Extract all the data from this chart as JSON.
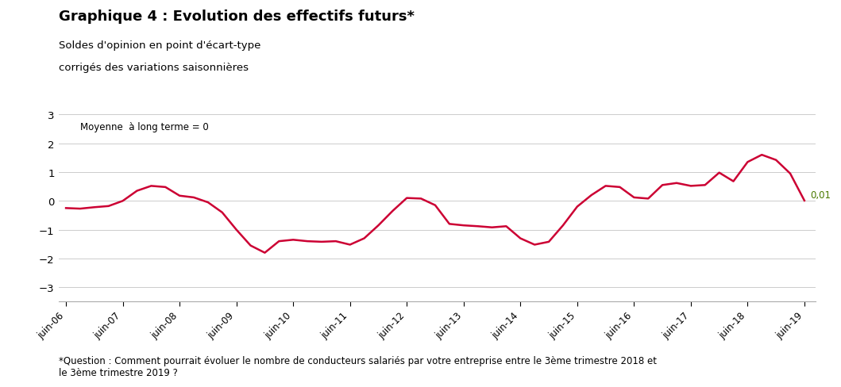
{
  "title": "Graphique 4 : Evolution des effectifs futurs*",
  "subtitle1": "Soldes d'opinion en point d'écart-type",
  "subtitle2": "corrigés des variations saisonnières",
  "annotation": "Moyenne  à long terme = 0",
  "footnote": "*Question : Comment pourrait évoluer le nombre de conducteurs salariés par votre entreprise entre le 3ème trimestre 2018 et\nle 3ème trimestre 2019 ?",
  "last_label": "0,01",
  "line_color": "#cc0033",
  "background_color": "#ffffff",
  "ylim": [
    -3.5,
    3.5
  ],
  "yticks": [
    -3,
    -2,
    -1,
    0,
    1,
    2,
    3
  ],
  "x_labels": [
    "juin-06",
    "juin-07",
    "juin-08",
    "juin-09",
    "juin-10",
    "juin-11",
    "juin-12",
    "juin-13",
    "juin-14",
    "juin-15",
    "juin-16",
    "juin-17",
    "juin-18",
    "juin-19"
  ],
  "x_tick_positions": [
    0,
    4,
    8,
    12,
    16,
    20,
    24,
    28,
    32,
    36,
    40,
    44,
    48,
    52
  ],
  "data_x": [
    0,
    1,
    2,
    3,
    4,
    5,
    6,
    7,
    8,
    9,
    10,
    11,
    12,
    13,
    14,
    15,
    16,
    17,
    18,
    19,
    20,
    21,
    22,
    23,
    24,
    25,
    26,
    27,
    28,
    29,
    30,
    31,
    32,
    33,
    34,
    35,
    36,
    37,
    38,
    39,
    40,
    41,
    42,
    43,
    44,
    45,
    46,
    47,
    48,
    49,
    50,
    51,
    52
  ],
  "data_y": [
    -0.25,
    -0.27,
    -0.22,
    -0.18,
    0.0,
    0.35,
    0.52,
    0.48,
    0.18,
    0.12,
    -0.05,
    -0.4,
    -1.0,
    -1.55,
    -1.8,
    -1.4,
    -1.35,
    -1.4,
    -1.42,
    -1.4,
    -1.52,
    -1.3,
    -0.85,
    -0.35,
    0.1,
    0.08,
    -0.15,
    -0.8,
    -0.85,
    -0.88,
    -0.92,
    -0.88,
    -1.3,
    -1.52,
    -1.42,
    -0.85,
    -0.2,
    0.2,
    0.52,
    0.48,
    0.12,
    0.08,
    0.55,
    0.62,
    0.52,
    0.55,
    0.98,
    0.68,
    1.35,
    1.6,
    1.42,
    0.95,
    0.01
  ],
  "last_label_color": "#4a7a00"
}
